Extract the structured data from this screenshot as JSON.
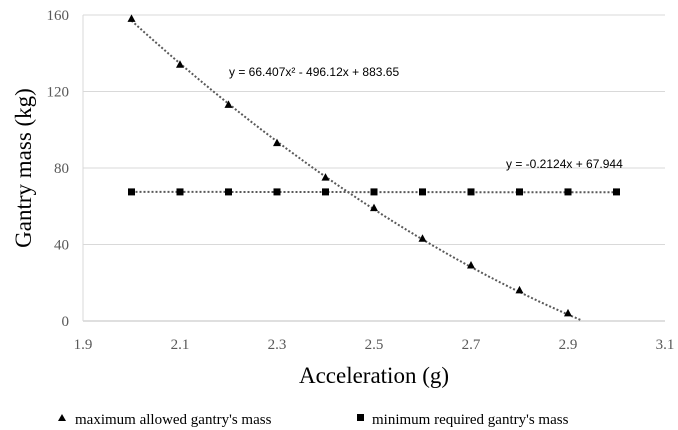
{
  "chart_data": {
    "type": "scatter",
    "title": "",
    "xlabel": "Acceleration (g)",
    "ylabel": "Gantry mass (kg)",
    "xlim": [
      1.9,
      3.1
    ],
    "ylim": [
      0,
      160
    ],
    "x_ticks": [
      "1.9",
      "2.1",
      "2.3",
      "2.5",
      "2.7",
      "2.9",
      "3.1"
    ],
    "y_ticks": [
      "0",
      "40",
      "80",
      "120",
      "160"
    ],
    "grid": "horizontal",
    "legend_position": "bottom",
    "series": [
      {
        "name": "maximum allowed gantry's mass",
        "marker": "triangle",
        "x": [
          2.0,
          2.1,
          2.2,
          2.3,
          2.4,
          2.5,
          2.6,
          2.7,
          2.8,
          2.9
        ],
        "y": [
          158,
          134,
          113,
          93,
          75,
          59,
          43,
          29,
          16,
          4
        ],
        "trendline": {
          "kind": "polynomial",
          "coefficients": [
            66.407,
            -496.12,
            883.65
          ],
          "label": "y = 66.407x² - 496.12x + 883.65"
        }
      },
      {
        "name": "minimum required gantry's mass",
        "marker": "square",
        "x": [
          2.0,
          2.1,
          2.2,
          2.3,
          2.4,
          2.5,
          2.6,
          2.7,
          2.8,
          2.9,
          3.0
        ],
        "y": [
          67.5,
          67.5,
          67.5,
          67.5,
          67.5,
          67.5,
          67.5,
          67.5,
          67.5,
          67.5,
          67.5
        ],
        "trendline": {
          "kind": "linear",
          "coefficients": [
            -0.2124,
            67.944
          ],
          "label": "y = -0.2124x + 67.944"
        }
      }
    ]
  }
}
